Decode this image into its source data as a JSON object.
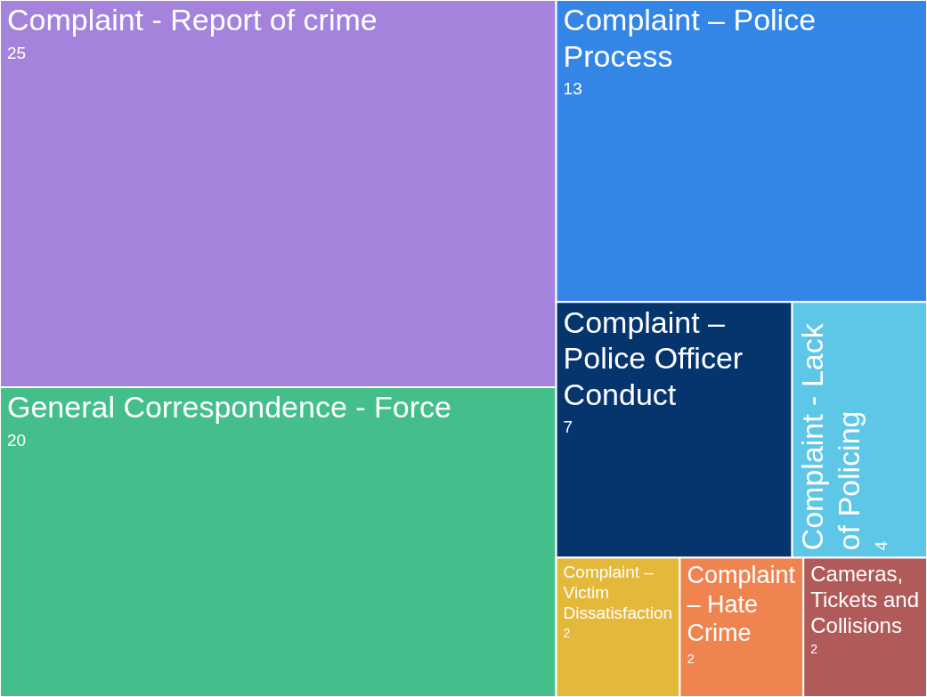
{
  "chart_data": {
    "type": "other",
    "categories": [
      "Complaint - Report of crime",
      "General Correspondence - Force",
      "Complaint – Police Process",
      "Complaint – Police Officer Conduct",
      "Complaint - Lack of Policing",
      "Complaint – Victim Dissatisfaction",
      "Complaint – Hate Crime",
      "Cameras, Tickets and Collisions"
    ],
    "values": [
      25,
      20,
      13,
      7,
      4,
      2,
      2,
      2
    ],
    "colors": [
      "#a383dc",
      "#44bf8c",
      "#3385e6",
      "#06356e",
      "#5ec6e6",
      "#e4b83a",
      "#ef8450",
      "#b05b59"
    ],
    "data_labels": true
  }
}
